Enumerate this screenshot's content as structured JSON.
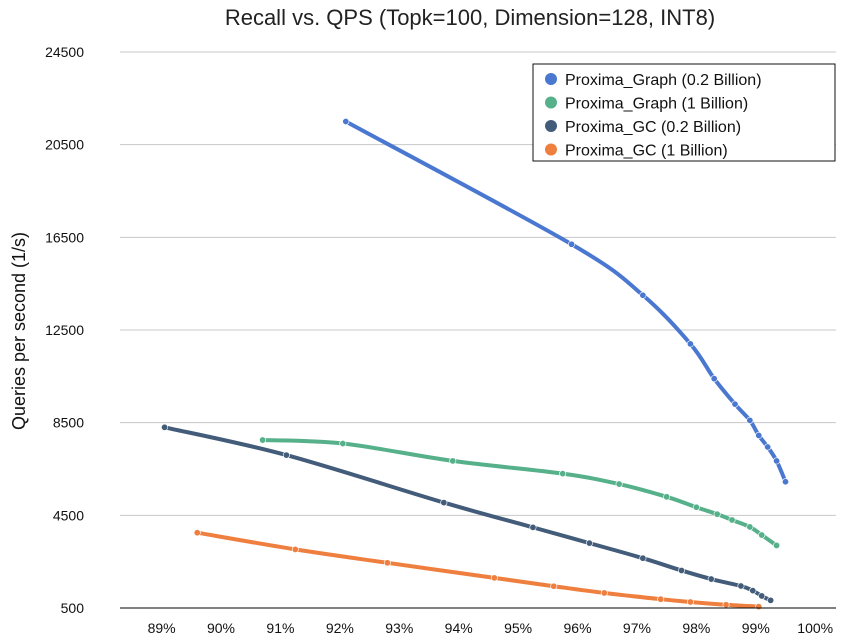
{
  "chart_data": {
    "type": "line",
    "title": "Recall vs. QPS (Topk=100, Dimension=128, INT8)",
    "xlabel": "",
    "ylabel": "Queries per second (1/s)",
    "x_ticks": [
      "89%",
      "90%",
      "91%",
      "92%",
      "93%",
      "94%",
      "95%",
      "96%",
      "97%",
      "98%",
      "99%",
      "100%"
    ],
    "y_ticks": [
      "500",
      "4500",
      "8500",
      "12500",
      "16500",
      "20500",
      "24500"
    ],
    "xlim": [
      88.3,
      100.35
    ],
    "ylim": [
      500,
      24500
    ],
    "grid": "horizontal",
    "legend_position": "top-right",
    "series": [
      {
        "name": "Proxima_Graph (0.2 Billion)",
        "color": "#4a78d0",
        "points": [
          [
            92.1,
            21500
          ],
          [
            95.9,
            16200
          ],
          [
            97.1,
            14000
          ],
          [
            97.9,
            11900
          ],
          [
            98.3,
            10400
          ],
          [
            98.65,
            9300
          ],
          [
            98.9,
            8600
          ],
          [
            99.05,
            7950
          ],
          [
            99.2,
            7450
          ],
          [
            99.35,
            6850
          ],
          [
            99.5,
            5950
          ]
        ]
      },
      {
        "name": "Proxima_Graph (1 Billion)",
        "color": "#56b08a",
        "points": [
          [
            90.7,
            7750
          ],
          [
            92.05,
            7600
          ],
          [
            93.9,
            6850
          ],
          [
            95.75,
            6300
          ],
          [
            96.7,
            5850
          ],
          [
            97.5,
            5300
          ],
          [
            98.0,
            4850
          ],
          [
            98.35,
            4550
          ],
          [
            98.6,
            4300
          ],
          [
            98.9,
            4000
          ],
          [
            99.1,
            3650
          ],
          [
            99.35,
            3200
          ]
        ]
      },
      {
        "name": "Proxima_GC (0.2 Billion)",
        "color": "#425c7a",
        "points": [
          [
            89.05,
            8300
          ],
          [
            91.1,
            7100
          ],
          [
            93.75,
            5050
          ],
          [
            95.25,
            3980
          ],
          [
            96.2,
            3300
          ],
          [
            97.1,
            2650
          ],
          [
            97.75,
            2120
          ],
          [
            98.25,
            1750
          ],
          [
            98.75,
            1450
          ],
          [
            98.95,
            1250
          ],
          [
            99.1,
            1020
          ],
          [
            99.25,
            830
          ]
        ]
      },
      {
        "name": "Proxima_GC (1 Billion)",
        "color": "#ef7f3e",
        "points": [
          [
            89.6,
            3750
          ],
          [
            91.25,
            3030
          ],
          [
            92.8,
            2450
          ],
          [
            94.6,
            1800
          ],
          [
            95.6,
            1440
          ],
          [
            96.45,
            1150
          ],
          [
            97.4,
            880
          ],
          [
            97.9,
            760
          ],
          [
            98.5,
            640
          ],
          [
            99.05,
            560
          ]
        ]
      }
    ]
  }
}
